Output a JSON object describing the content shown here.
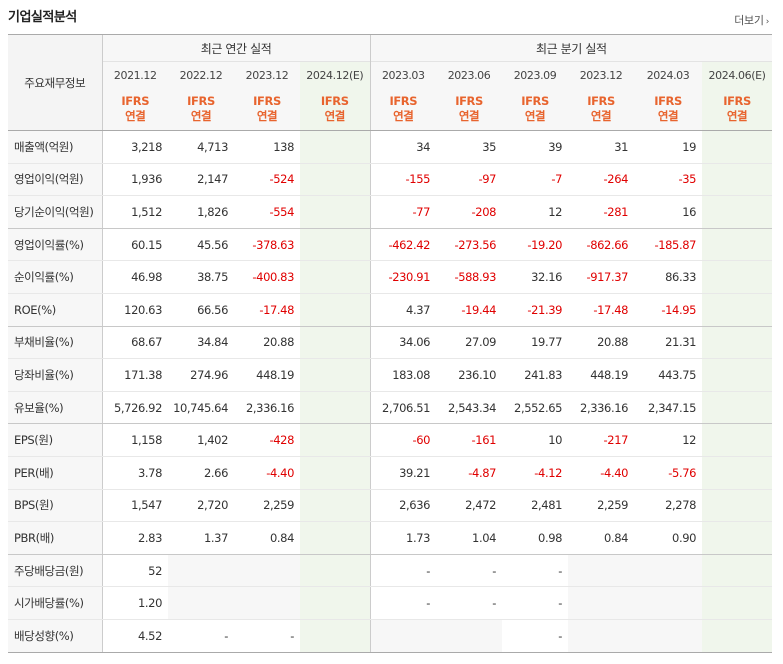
{
  "header": {
    "title": "기업실적분석",
    "more_label": "더보기"
  },
  "table": {
    "label_header": "주요재무정보",
    "groups": [
      "최근 연간 실적",
      "최근 분기 실적"
    ],
    "periods": [
      "2021.12",
      "2022.12",
      "2023.12",
      "2024.12(E)",
      "2023.03",
      "2023.06",
      "2023.09",
      "2023.12",
      "2024.03",
      "2024.06(E)"
    ],
    "ifrs": "IFRS",
    "consol": "연결",
    "rows": [
      {
        "label": "매출액(억원)",
        "values": [
          "3,218",
          "4,713",
          "138",
          "",
          "34",
          "35",
          "39",
          "31",
          "19",
          ""
        ]
      },
      {
        "label": "영업이익(억원)",
        "values": [
          "1,936",
          "2,147",
          "-524",
          "",
          "-155",
          "-97",
          "-7",
          "-264",
          "-35",
          ""
        ]
      },
      {
        "label": "당기순이익(억원)",
        "values": [
          "1,512",
          "1,826",
          "-554",
          "",
          "-77",
          "-208",
          "12",
          "-281",
          "16",
          ""
        ]
      },
      {
        "label": "영업이익률(%)",
        "values": [
          "60.15",
          "45.56",
          "-378.63",
          "",
          "-462.42",
          "-273.56",
          "-19.20",
          "-862.66",
          "-185.87",
          ""
        ]
      },
      {
        "label": "순이익률(%)",
        "values": [
          "46.98",
          "38.75",
          "-400.83",
          "",
          "-230.91",
          "-588.93",
          "32.16",
          "-917.37",
          "86.33",
          ""
        ]
      },
      {
        "label": "ROE(%)",
        "values": [
          "120.63",
          "66.56",
          "-17.48",
          "",
          "4.37",
          "-19.44",
          "-21.39",
          "-17.48",
          "-14.95",
          ""
        ]
      },
      {
        "label": "부채비율(%)",
        "values": [
          "68.67",
          "34.84",
          "20.88",
          "",
          "34.06",
          "27.09",
          "19.77",
          "20.88",
          "21.31",
          ""
        ]
      },
      {
        "label": "당좌비율(%)",
        "values": [
          "171.38",
          "274.96",
          "448.19",
          "",
          "183.08",
          "236.10",
          "241.83",
          "448.19",
          "443.75",
          ""
        ]
      },
      {
        "label": "유보율(%)",
        "values": [
          "5,726.92",
          "10,745.64",
          "2,336.16",
          "",
          "2,706.51",
          "2,543.34",
          "2,552.65",
          "2,336.16",
          "2,347.15",
          ""
        ]
      },
      {
        "label": "EPS(원)",
        "values": [
          "1,158",
          "1,402",
          "-428",
          "",
          "-60",
          "-161",
          "10",
          "-217",
          "12",
          ""
        ]
      },
      {
        "label": "PER(배)",
        "values": [
          "3.78",
          "2.66",
          "-4.40",
          "",
          "39.21",
          "-4.87",
          "-4.12",
          "-4.40",
          "-5.76",
          ""
        ]
      },
      {
        "label": "BPS(원)",
        "values": [
          "1,547",
          "2,720",
          "2,259",
          "",
          "2,636",
          "2,472",
          "2,481",
          "2,259",
          "2,278",
          ""
        ]
      },
      {
        "label": "PBR(배)",
        "values": [
          "2.83",
          "1.37",
          "0.84",
          "",
          "1.73",
          "1.04",
          "0.98",
          "0.84",
          "0.90",
          ""
        ]
      },
      {
        "label": "주당배당금(원)",
        "values": [
          "52",
          "",
          "",
          "",
          "-",
          "-",
          "-",
          "",
          "",
          ""
        ]
      },
      {
        "label": "시가배당률(%)",
        "values": [
          "1.20",
          "",
          "",
          "",
          "-",
          "-",
          "-",
          "",
          "",
          ""
        ]
      },
      {
        "label": "배당성향(%)",
        "values": [
          "4.52",
          "-",
          "-",
          "",
          "",
          "",
          "-",
          "",
          "",
          ""
        ]
      }
    ]
  }
}
